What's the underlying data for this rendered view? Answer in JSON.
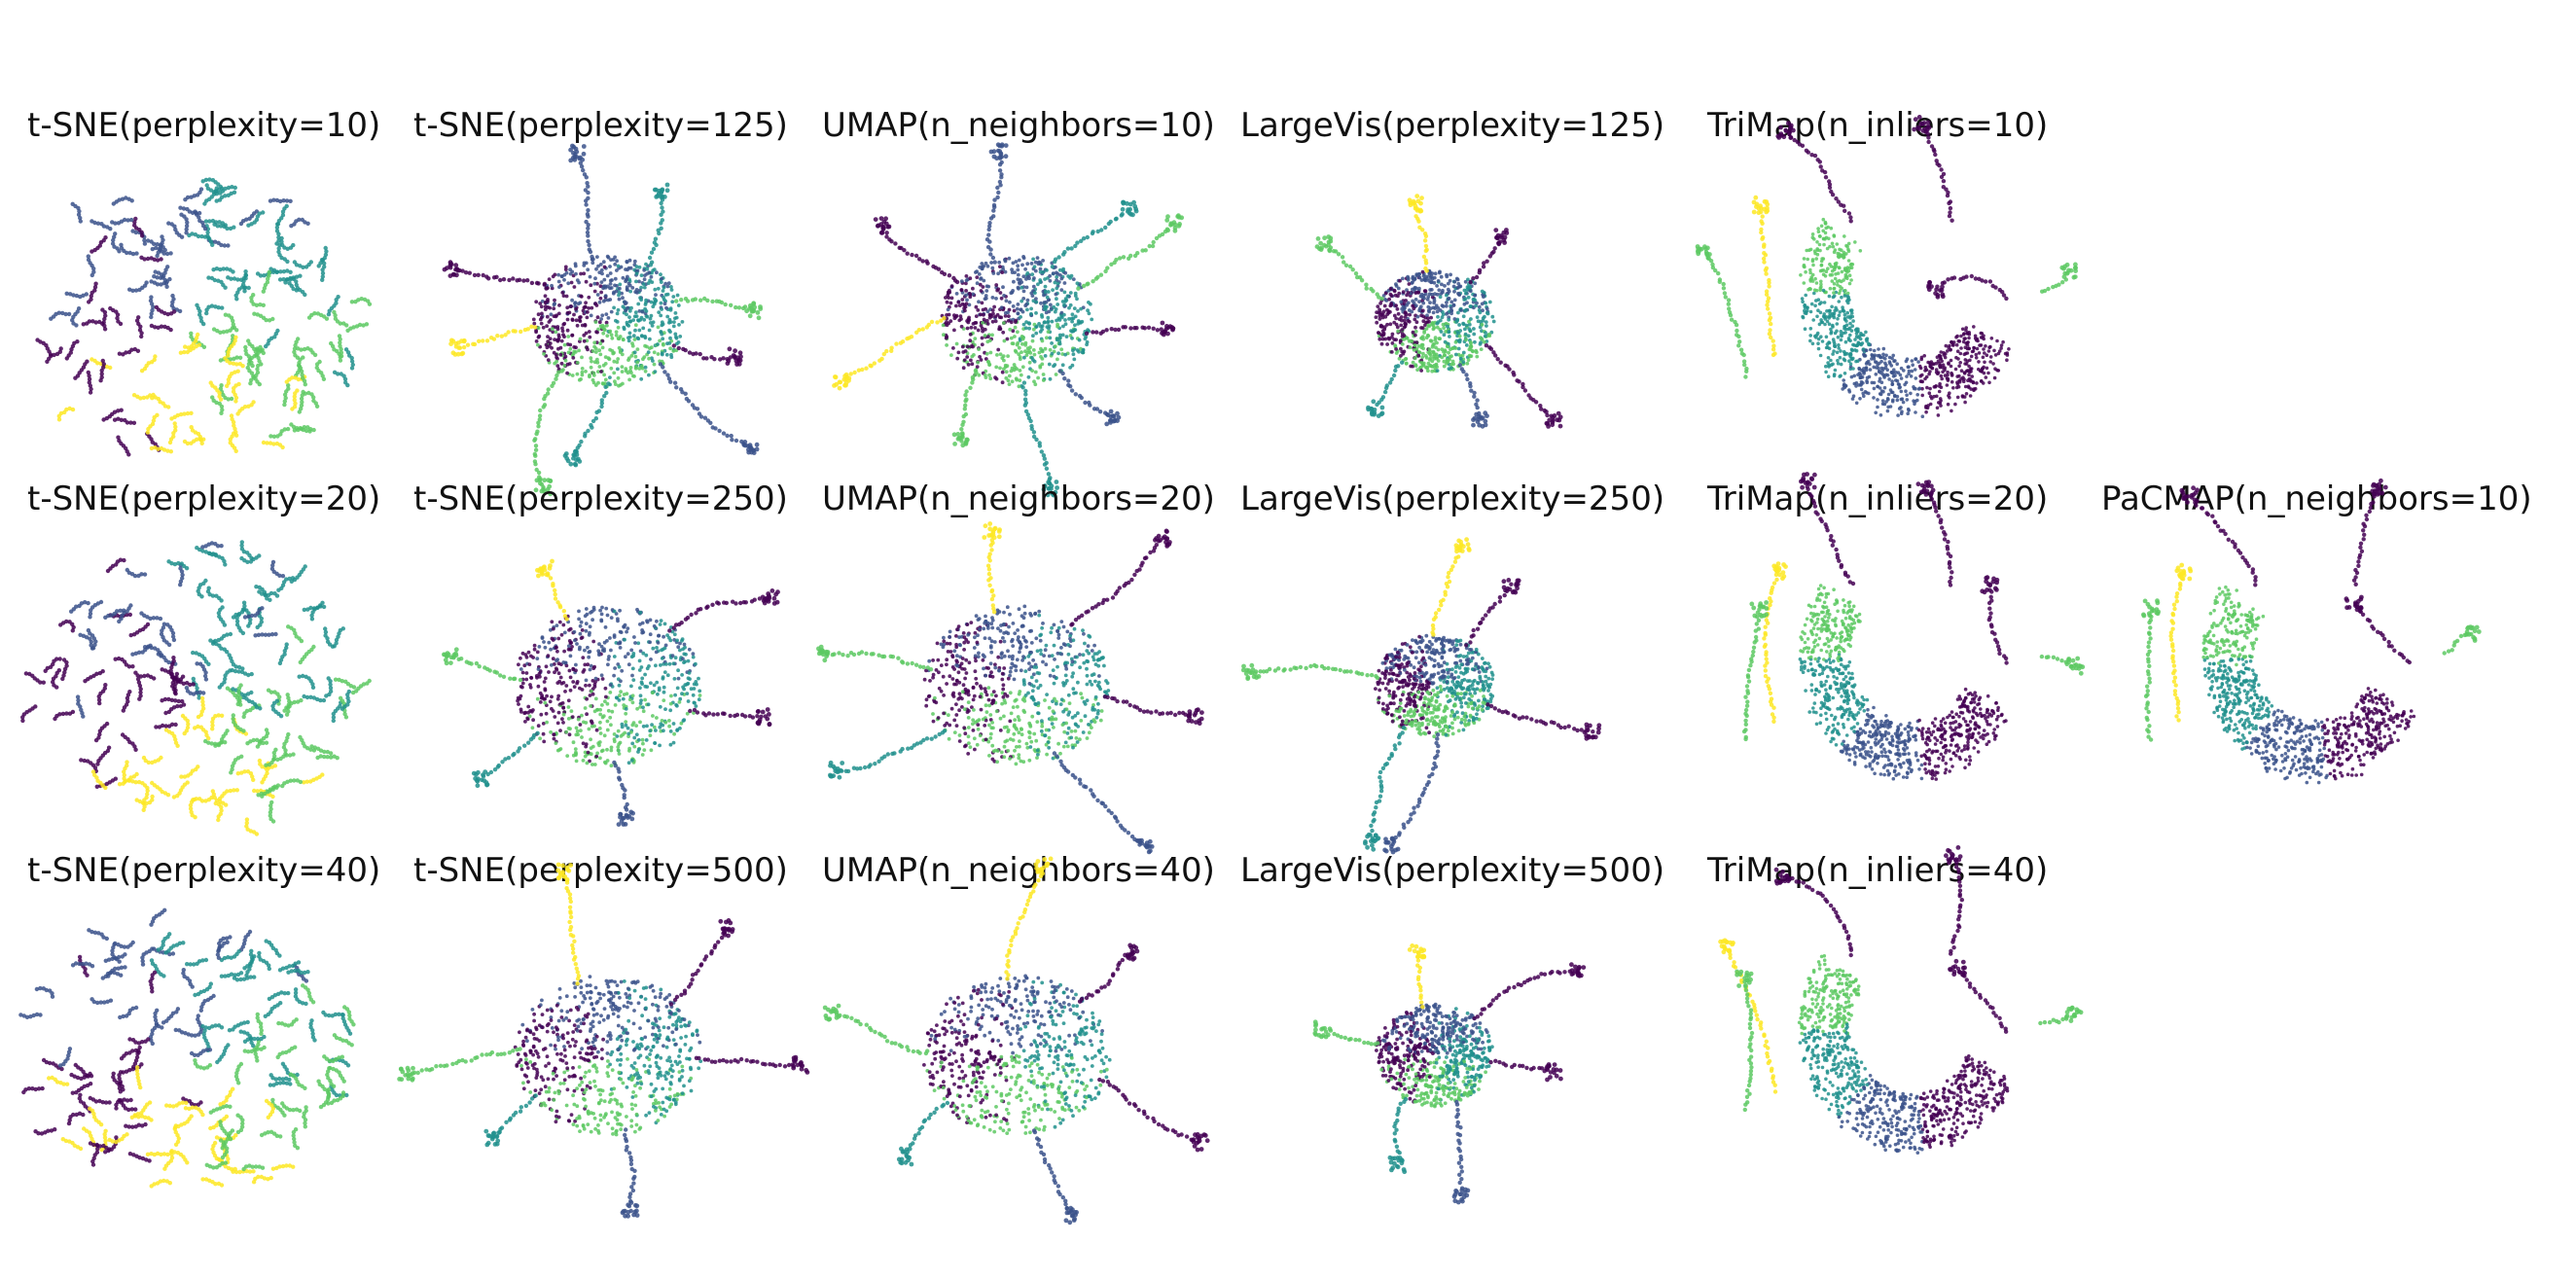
{
  "chart_data": {
    "type": "scatter",
    "title": "",
    "description_colors": [
      "#440154",
      "#3b528b",
      "#21908d",
      "#5dc963",
      "#fde725"
    ],
    "colormap": "viridis",
    "axes_visible": false,
    "grid": false,
    "legend": "none",
    "panels": [
      {
        "id": "tsne-10",
        "title": "t-SNE(perplexity=10)",
        "row": 0,
        "col": 0,
        "style": "fragmented"
      },
      {
        "id": "tsne-125",
        "title": "t-SNE(perplexity=125)",
        "row": 0,
        "col": 1,
        "style": "spread"
      },
      {
        "id": "umap-10",
        "title": "UMAP(n_neighbors=10)",
        "row": 0,
        "col": 2,
        "style": "spread"
      },
      {
        "id": "lv-125",
        "title": "LargeVis(perplexity=125)",
        "row": 0,
        "col": 3,
        "style": "compact"
      },
      {
        "id": "trimap-10",
        "title": "TriMap(n_inliers=10)",
        "row": 0,
        "col": 4,
        "style": "arc"
      },
      {
        "id": "tsne-20",
        "title": "t-SNE(perplexity=20)",
        "row": 1,
        "col": 0,
        "style": "fragmented"
      },
      {
        "id": "tsne-250",
        "title": "t-SNE(perplexity=250)",
        "row": 1,
        "col": 1,
        "style": "mesh"
      },
      {
        "id": "umap-20",
        "title": "UMAP(n_neighbors=20)",
        "row": 1,
        "col": 2,
        "style": "mesh"
      },
      {
        "id": "lv-250",
        "title": "LargeVis(perplexity=250)",
        "row": 1,
        "col": 3,
        "style": "compact"
      },
      {
        "id": "trimap-20",
        "title": "TriMap(n_inliers=20)",
        "row": 1,
        "col": 4,
        "style": "arc"
      },
      {
        "id": "pacmap-10",
        "title": "PaCMAP(n_neighbors=10)",
        "row": 1,
        "col": 5,
        "style": "arc"
      },
      {
        "id": "tsne-40",
        "title": "t-SNE(perplexity=40)",
        "row": 2,
        "col": 0,
        "style": "fragmented"
      },
      {
        "id": "tsne-500",
        "title": "t-SNE(perplexity=500)",
        "row": 2,
        "col": 1,
        "style": "mesh"
      },
      {
        "id": "umap-40",
        "title": "UMAP(n_neighbors=40)",
        "row": 2,
        "col": 2,
        "style": "mesh"
      },
      {
        "id": "lv-500",
        "title": "LargeVis(perplexity=500)",
        "row": 2,
        "col": 3,
        "style": "compact"
      },
      {
        "id": "trimap-40",
        "title": "TriMap(n_inliers=40)",
        "row": 2,
        "col": 4,
        "style": "arc"
      }
    ]
  }
}
